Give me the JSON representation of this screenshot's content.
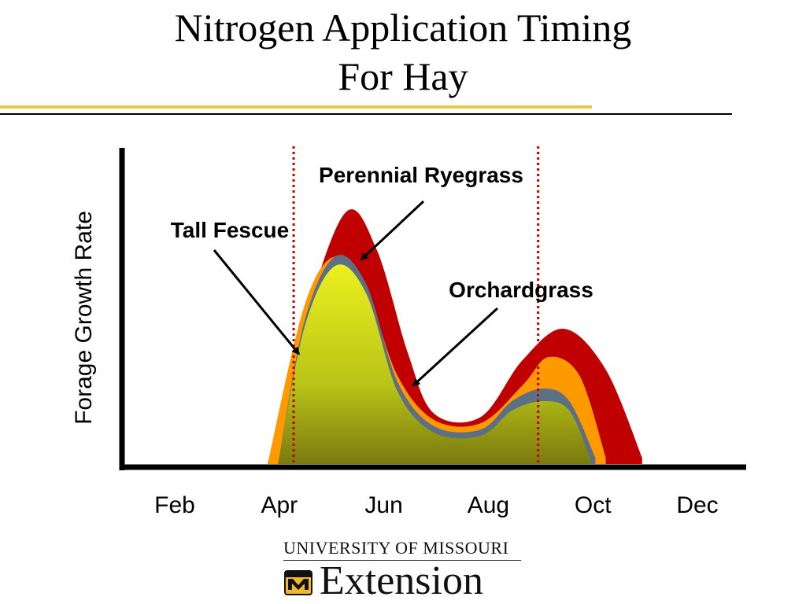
{
  "slide": {
    "title_line1": "Nitrogen Application Timing",
    "title_line2": "For Hay"
  },
  "logo": {
    "top_text": "UNIVERSITY OF MISSOURI",
    "bottom_text": "Extension",
    "mark": "mu-tiger-shield-icon",
    "mark_color": "#f1b82d"
  },
  "chart_data": {
    "type": "area",
    "ylabel": "Forage Growth Rate",
    "xlabel": "",
    "categories": [
      "Feb",
      "Apr",
      "Jun",
      "Aug",
      "Oct",
      "Dec"
    ],
    "y_unit": "relative growth (0-1)",
    "series": [
      {
        "name": "Perennial Ryegrass",
        "color": "#c00000",
        "points": [
          [
            3.3,
            0
          ],
          [
            4.0,
            0.45
          ],
          [
            4.8,
            0.8
          ],
          [
            5.4,
            0.68
          ],
          [
            6.0,
            0.35
          ],
          [
            6.5,
            0.16
          ],
          [
            7.4,
            0.15
          ],
          [
            8.2,
            0.33
          ],
          [
            9.0,
            0.43
          ],
          [
            9.8,
            0.3
          ],
          [
            10.5,
            0.02
          ]
        ]
      },
      {
        "name": "Tall Fescue",
        "color": "#ff9900",
        "points": [
          [
            3.3,
            0
          ],
          [
            4.0,
            0.5
          ],
          [
            4.6,
            0.66
          ],
          [
            5.2,
            0.55
          ],
          [
            5.8,
            0.28
          ],
          [
            6.5,
            0.14
          ],
          [
            7.4,
            0.13
          ],
          [
            8.2,
            0.25
          ],
          [
            8.7,
            0.34
          ],
          [
            9.3,
            0.28
          ],
          [
            9.8,
            0.02
          ]
        ]
      },
      {
        "name": "Orchardgrass",
        "color": "#5b7084",
        "points": [
          [
            3.5,
            0
          ],
          [
            4.0,
            0.45
          ],
          [
            4.6,
            0.66
          ],
          [
            5.2,
            0.57
          ],
          [
            5.8,
            0.26
          ],
          [
            6.5,
            0.12
          ],
          [
            7.4,
            0.11
          ],
          [
            8.0,
            0.2
          ],
          [
            8.6,
            0.24
          ],
          [
            9.1,
            0.2
          ],
          [
            9.6,
            0.02
          ]
        ]
      },
      {
        "name": "Fill",
        "color": "#d8e81a",
        "points": [
          [
            3.5,
            0
          ],
          [
            4.0,
            0.43
          ],
          [
            4.6,
            0.63
          ],
          [
            5.2,
            0.54
          ],
          [
            5.8,
            0.23
          ],
          [
            6.5,
            0.1
          ],
          [
            7.4,
            0.09
          ],
          [
            8.0,
            0.17
          ],
          [
            8.6,
            0.2
          ],
          [
            9.1,
            0.17
          ],
          [
            9.5,
            0.02
          ]
        ]
      }
    ],
    "application_windows": [
      3.8,
      8.5
    ],
    "window_line_color": "#c00000",
    "annotations": [
      {
        "text": "Perennial Ryegrass",
        "target": [
          5.1,
          0.65
        ]
      },
      {
        "text": "Tall Fescue",
        "target": [
          3.9,
          0.35
        ]
      },
      {
        "text": "Orchardgrass",
        "target": [
          6.1,
          0.25
        ]
      }
    ],
    "xlim": [
      0.5,
      12.5
    ],
    "ylim": [
      0,
      1
    ],
    "grid": false,
    "legend": "none"
  }
}
